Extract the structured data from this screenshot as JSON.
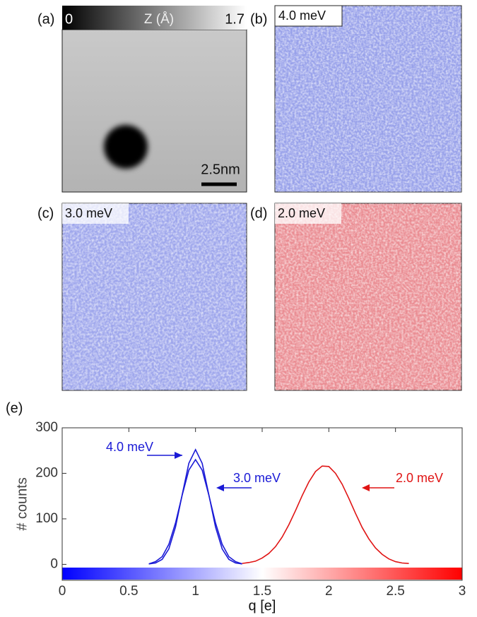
{
  "panels": {
    "a": {
      "label": "(a)",
      "colorbar": {
        "min": 0,
        "title": "Z (Å)",
        "max": 1.7
      },
      "scale_bar": "2.5nm"
    },
    "b": {
      "label": "(b)",
      "energy": "4.0 meV"
    },
    "c": {
      "label": "(c)",
      "energy": "3.0 meV"
    },
    "d": {
      "label": "(d)",
      "energy": "2.0 meV"
    }
  },
  "chart_data": {
    "type": "line",
    "panel_label": "(e)",
    "x_label": "q [e]",
    "y_label": "# counts",
    "x": [
      0.6,
      0.65,
      0.7,
      0.75,
      0.8,
      0.85,
      0.9,
      0.95,
      1,
      1.05,
      1.1,
      1.15,
      1.2,
      1.25,
      1.3,
      1.35,
      1.4,
      1.45,
      1.5,
      1.55,
      1.6,
      1.65,
      1.7,
      1.75,
      1.8,
      1.85,
      1.9,
      1.95,
      2,
      2.05,
      2.1,
      2.15,
      2.2,
      2.25,
      2.3,
      2.35,
      2.4,
      2.45,
      2.5,
      2.55,
      2.6
    ],
    "series": [
      {
        "name": "4.0 meV",
        "color": "#1a1ad6",
        "values": [
          null,
          1,
          3,
          11,
          34,
          82,
          153,
          222,
          252,
          222,
          153,
          82,
          34,
          11,
          3,
          1,
          null,
          null,
          null,
          null,
          null,
          null,
          null,
          null,
          null,
          null,
          null,
          null,
          null,
          null,
          null,
          null,
          null,
          null,
          null,
          null,
          null,
          null,
          null,
          null,
          null
        ]
      },
      {
        "name": "3.0 meV",
        "color": "#1a1ad6",
        "values": [
          null,
          1,
          6,
          17,
          44,
          91,
          152,
          207,
          230,
          207,
          152,
          91,
          44,
          17,
          6,
          1,
          null,
          null,
          null,
          null,
          null,
          null,
          null,
          null,
          null,
          null,
          null,
          null,
          null,
          null,
          null,
          null,
          null,
          null,
          null,
          null,
          null,
          null,
          null,
          null,
          null
        ]
      },
      {
        "name": "2.0 meV",
        "color": "#e01414",
        "values": [
          null,
          null,
          null,
          null,
          null,
          null,
          null,
          null,
          null,
          null,
          null,
          null,
          null,
          null,
          null,
          2,
          4,
          7,
          14,
          24,
          39,
          60,
          87,
          118,
          151,
          181,
          204,
          216,
          215,
          200,
          176,
          145,
          112,
          81,
          56,
          36,
          22,
          12,
          6,
          3,
          2
        ]
      }
    ],
    "xlim": [
      0,
      3
    ],
    "xticks": [
      0,
      0.5,
      1,
      1.5,
      2,
      2.5,
      3
    ],
    "ylim": [
      -35,
      300
    ],
    "yticks": [
      0,
      100,
      200,
      300
    ]
  }
}
